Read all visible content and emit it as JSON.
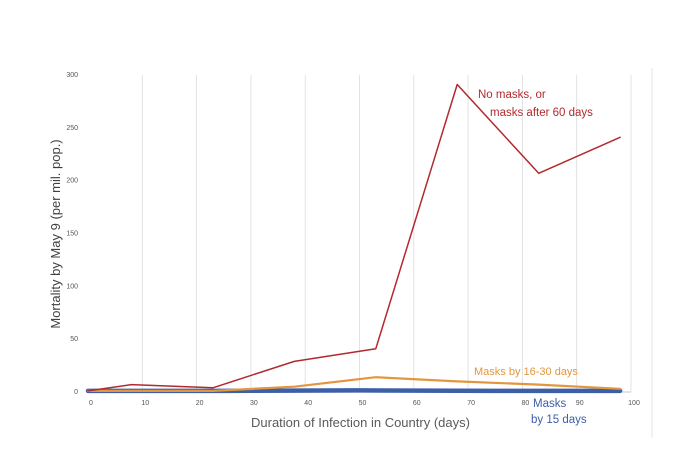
{
  "chart_data": {
    "type": "line",
    "xlabel": "Duration of Infection in Country (days)",
    "ylabel": "Mortality by May 9 (per mil. pop.)",
    "xlim": [
      0,
      100
    ],
    "ylim": [
      0,
      300
    ],
    "x_ticks": [
      0,
      10,
      20,
      30,
      40,
      50,
      60,
      70,
      80,
      90,
      100
    ],
    "y_ticks": [
      0,
      50,
      100,
      150,
      200,
      250,
      300
    ],
    "grid": "vertical",
    "legend": "none",
    "series": [
      {
        "name": "No masks, or masks after 60 days",
        "label_lines": [
          "No masks, or",
          "masks after 60  days"
        ],
        "color": "#b22a2e",
        "x": [
          0,
          8,
          23,
          38,
          53,
          68,
          83,
          98
        ],
        "y": [
          1,
          7,
          4,
          29,
          41,
          291,
          207,
          241
        ]
      },
      {
        "name": "Masks by 16-30 days",
        "label_lines": [
          "Masks by 16-30 days"
        ],
        "color": "#e3963f",
        "x": [
          0,
          23,
          38,
          53,
          68,
          83,
          98
        ],
        "y": [
          1,
          1,
          5,
          14,
          10,
          7,
          3
        ]
      },
      {
        "name": "Masks by 15 days",
        "label_lines": [
          "Masks",
          "by 15 days"
        ],
        "color": "#3d5fa8",
        "x": [
          0,
          25,
          50,
          75,
          98
        ],
        "y": [
          1,
          1,
          1.5,
          1,
          1
        ]
      }
    ]
  }
}
